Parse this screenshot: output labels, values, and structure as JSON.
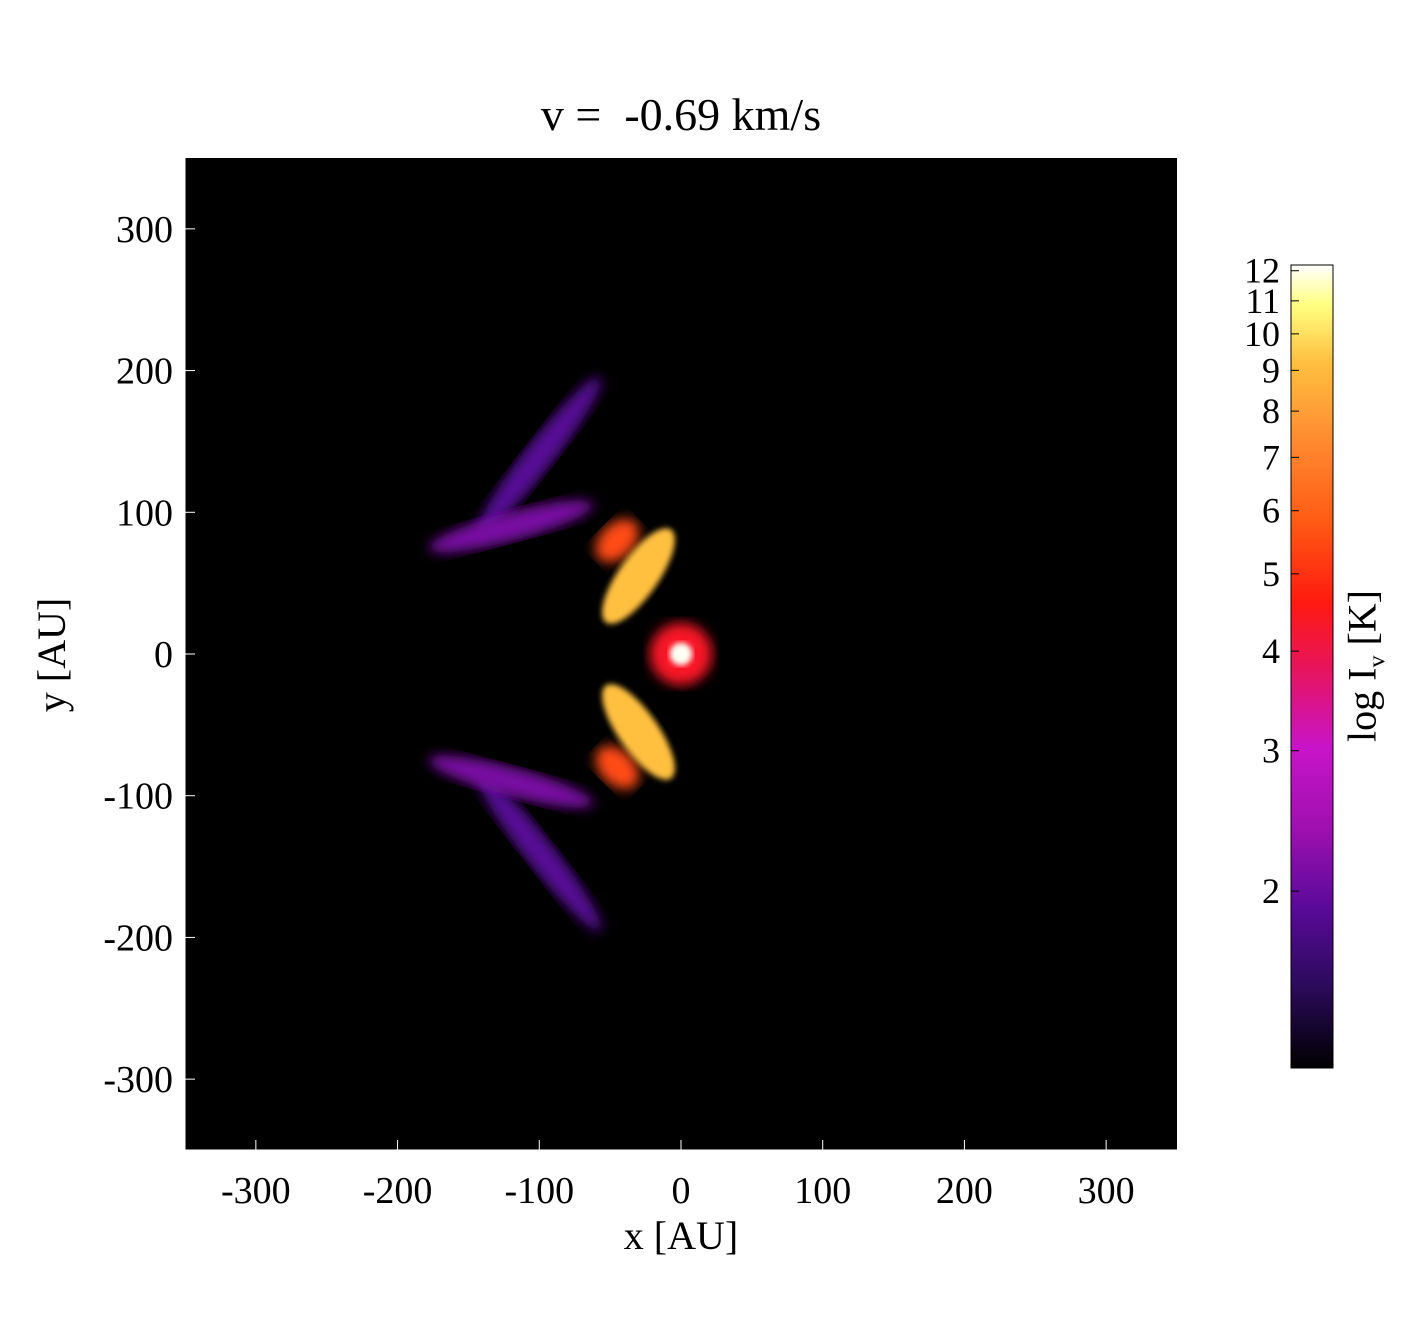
{
  "chart_data": {
    "type": "heatmap",
    "title": "v =  -0.69 km/s",
    "xlabel": "x [AU]",
    "ylabel": "y [AU]",
    "xlim": [
      -350,
      350
    ],
    "ylim": [
      -350,
      350
    ],
    "xticks": [
      "-300",
      "-200",
      "-100",
      "0",
      "100",
      "200",
      "300"
    ],
    "yticks": [
      "300",
      "200",
      "100",
      "0",
      "-100",
      "-200",
      "-300"
    ],
    "colorbar": {
      "label_main": "log I",
      "label_sub": "v",
      "label_unit": " [K]",
      "ticks": [
        "12",
        "11",
        "10",
        "9",
        "8",
        "7",
        "6",
        "5",
        "4",
        "3",
        "2"
      ],
      "tick_values": [
        12,
        11,
        10,
        9,
        8,
        7,
        6,
        5,
        4,
        3,
        2
      ],
      "range": [
        1.2,
        12.2
      ],
      "scale": "log",
      "colormap": [
        "#000000",
        "#2a0a5a",
        "#5a0a9a",
        "#a010b0",
        "#c814c8",
        "#e8145a",
        "#ff1a10",
        "#ff5a14",
        "#ff8a30",
        "#ffc040",
        "#ffff80",
        "#ffffff"
      ]
    },
    "emission_regions": [
      {
        "x": 0,
        "y": 0,
        "r": 8,
        "value": 12
      },
      {
        "x": 0,
        "y": 0,
        "r": 22,
        "value": 4
      },
      {
        "x": -30,
        "y": 55,
        "rx": 40,
        "ry": 14,
        "angle": -55,
        "value": 8
      },
      {
        "x": -45,
        "y": 80,
        "rx": 18,
        "ry": 12,
        "angle": -45,
        "value": 5
      },
      {
        "x": -120,
        "y": 90,
        "rx": 60,
        "ry": 10,
        "angle": -15,
        "value": 2
      },
      {
        "x": -100,
        "y": 140,
        "rx": 70,
        "ry": 10,
        "angle": -52,
        "value": 1.8
      },
      {
        "x": -30,
        "y": -55,
        "rx": 40,
        "ry": 14,
        "angle": 55,
        "value": 8
      },
      {
        "x": -45,
        "y": -80,
        "rx": 18,
        "ry": 12,
        "angle": 45,
        "value": 5
      },
      {
        "x": -120,
        "y": -90,
        "rx": 60,
        "ry": 10,
        "angle": 15,
        "value": 2
      },
      {
        "x": -100,
        "y": -140,
        "rx": 70,
        "ry": 10,
        "angle": 52,
        "value": 1.8
      }
    ]
  }
}
